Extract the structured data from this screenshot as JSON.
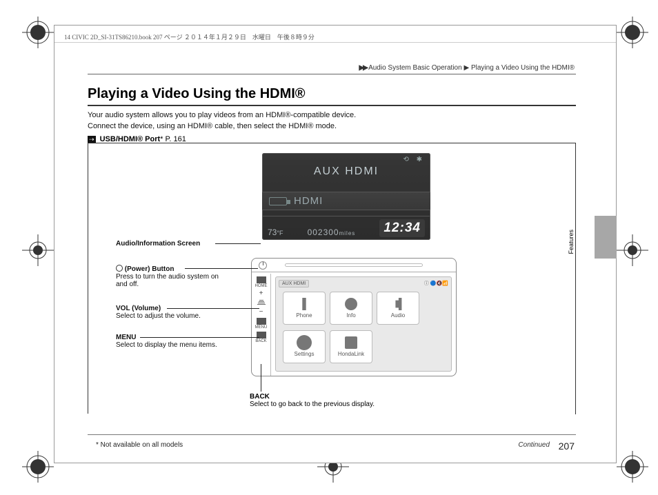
{
  "doc_header": "14 CIVIC 2D_SI-31TS86210.book  207 ページ  ２０１４年１月２９日　水曜日　午後８時９分",
  "breadcrumb": {
    "arrows": "▶▶",
    "section": "Audio System Basic Operation",
    "sep": "▶",
    "page": "Playing a Video Using the HDMI®"
  },
  "title": "Playing a Video Using the HDMI®",
  "intro_l1": "Your audio system allows you to play videos from an HDMI®-compatible device.",
  "intro_l2": "Connect the device, using an HDMI® cable, then select the HDMI® mode.",
  "xref": {
    "label": "USB/HDMI® Port",
    "star": "*",
    "page": " P. 161"
  },
  "screen": {
    "aux_title": "AUX HDMI",
    "hdmi_label": "HDMI",
    "temp_value": "73",
    "temp_unit": "°F",
    "odo_value": "002300",
    "odo_unit": "miles",
    "clock": "12:34",
    "status_glyphs": "⟲ ✱"
  },
  "console": {
    "home_label": "HOME",
    "menu_label": "MENU",
    "back_label": "BACK",
    "src_label": "AUX HDMI",
    "bt_label": "ⓘ 🔵🔇📶",
    "apps": [
      {
        "key": "phone",
        "label": "Phone"
      },
      {
        "key": "info",
        "label": "Info"
      },
      {
        "key": "audio",
        "label": "Audio"
      },
      {
        "key": "settings",
        "label": "Settings"
      },
      {
        "key": "link",
        "label": "HondaLink"
      }
    ]
  },
  "callouts": {
    "screen_label": "Audio/Information Screen",
    "power_title": "(Power) Button",
    "power_body": "Press to turn the audio system on and off.",
    "vol_title": "VOL (Volume)",
    "vol_body": "Select to adjust the volume.",
    "menu_title": "MENU",
    "menu_body": "Select to display the menu items.",
    "back_title": "BACK",
    "back_body": "Select to go back to the previous display."
  },
  "footnote": "* Not available on all models",
  "continued": "Continued",
  "pagenum": "207",
  "side_tab_label": "Features"
}
